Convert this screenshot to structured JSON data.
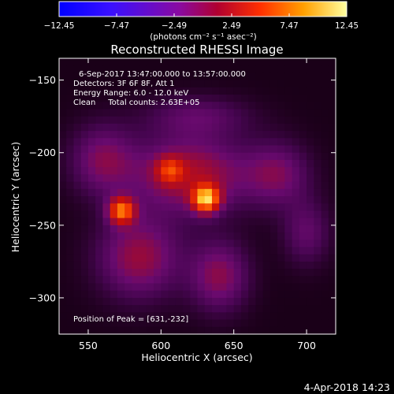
{
  "chart_data": {
    "type": "heatmap",
    "title": "Reconstructed RHESSI Image",
    "xlabel": "Heliocentric X (arcsec)",
    "ylabel": "Heliocentric Y (arcsec)",
    "xlim": [
      530,
      720
    ],
    "ylim": [
      -325,
      -135
    ],
    "x_ticks": [
      550,
      600,
      650,
      700
    ],
    "y_ticks": [
      -150,
      -200,
      -250,
      -300
    ],
    "x_tick_labels": [
      "550",
      "600",
      "650",
      "700"
    ],
    "y_tick_labels": [
      "−150",
      "−200",
      "−250",
      "−300"
    ],
    "colorbar": {
      "min": -12.45,
      "max": 12.45,
      "tick_values": [
        -12.45,
        -7.47,
        -2.49,
        2.49,
        7.47,
        12.45
      ],
      "tick_labels": [
        "−12.45",
        "−7.47",
        "−2.49",
        "2.49",
        "7.47",
        "12.45"
      ],
      "unit_label": "(photons cm⁻² s⁻¹ asec⁻²)"
    },
    "info_lines": [
      "6-Sep-2017 13:47:00.000 to 13:57:00.000",
      "Detectors: 3F 6F 8F, Att 1",
      "Energy Range: 6.0 - 12.0 keV",
      "Clean     Total counts: 2.63E+05"
    ],
    "peak_label": "Position of Peak = [631,-232]",
    "peak": [
      631,
      -232
    ],
    "sources": [
      {
        "x": 631,
        "y": -232,
        "peak": 12.45
      },
      {
        "x": 573,
        "y": -240,
        "peak": 10.6
      },
      {
        "x": 606,
        "y": -212,
        "peak": 5.5
      }
    ],
    "timestamp": "4-Apr-2018 14:23"
  }
}
